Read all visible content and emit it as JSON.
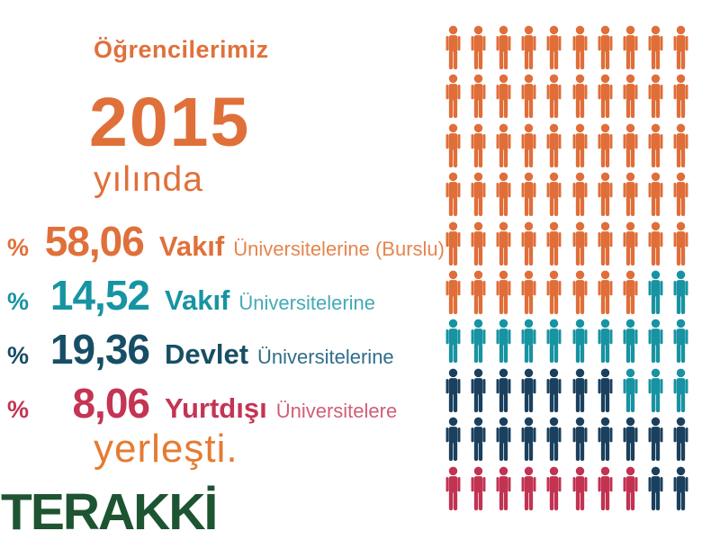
{
  "header": {
    "eyebrow": "Öğrencilerimiz",
    "year": "2015",
    "subtitle": "yılında",
    "accent_color": "#E0703A"
  },
  "stats": [
    {
      "percent_sign": "%",
      "value": "58,06",
      "category": "Vakıf",
      "detail": "Üniversitelerine (Burslu)",
      "color": "#E0703A",
      "detail_color": "#E6854F"
    },
    {
      "percent_sign": "%",
      "value": "14,52",
      "category": "Vakıf",
      "detail": "Üniversitelerine",
      "color": "#1794A3",
      "detail_color": "#45AAB6"
    },
    {
      "percent_sign": "%",
      "value": "19,36",
      "category": "Devlet",
      "detail": "Üniversitelerine",
      "color": "#174E66",
      "detail_color": "#2E6E8A"
    },
    {
      "percent_sign": "%",
      "value": "8,06",
      "category": "Yurtdışı",
      "detail": "Üniversitelere",
      "color": "#C43454",
      "detail_color": "#D05E77"
    }
  ],
  "closing": {
    "label": "yerleşti.",
    "color": "#E57B32"
  },
  "logo": {
    "label": "TERAKKİ",
    "color": "#1D5431"
  },
  "pictogram": {
    "columns": 10,
    "rows_count": 10,
    "palette": {
      "o": "#E06E39",
      "t": "#1793A2",
      "n": "#1A405E",
      "c": "#C23351"
    },
    "rows": [
      "oooooooooo",
      "oooooooooo",
      "oooooooooo",
      "oooooooooo",
      "oooooooooo",
      "oooooooott",
      "tttttttttt",
      "nnnnnnnttt",
      "nnnnnnnnnn",
      "ccccccccnn"
    ]
  },
  "chart_data": {
    "type": "pictogram",
    "title": "Öğrencilerimiz 2015 yılında yerleşti.",
    "categories": [
      "Vakıf Üniversitelerine (Burslu)",
      "Vakıf Üniversitelerine",
      "Devlet Üniversitelerine",
      "Yurtdışı Üniversitelere"
    ],
    "values": [
      58.06,
      14.52,
      19.36,
      8.06
    ],
    "unit": "percent",
    "icon_counts": [
      58,
      15,
      19,
      8
    ],
    "total_icons": 100,
    "colors": [
      "#E06E39",
      "#1793A2",
      "#1A405E",
      "#C23351"
    ],
    "layout": {
      "grid_columns": 10,
      "grid_rows": 10,
      "legend": "none",
      "axes": "none"
    }
  }
}
